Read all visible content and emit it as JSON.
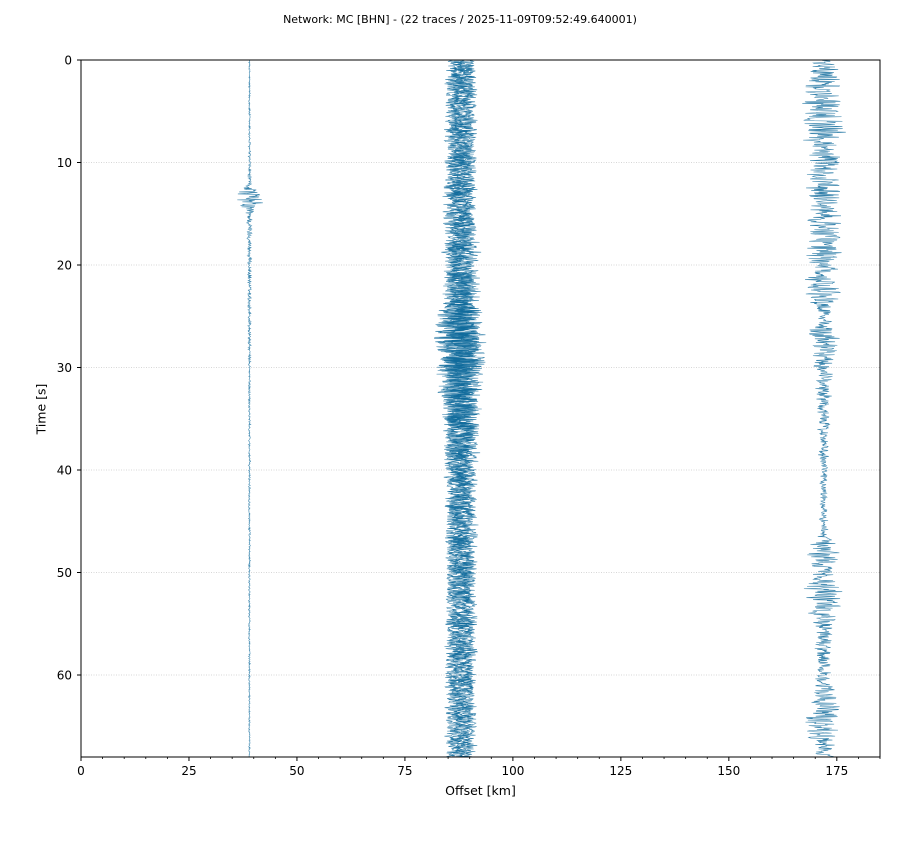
{
  "chart_data": {
    "type": "line",
    "title": "Network: MC [BHN] - (22 traces / 2025-11-09T09:52:49.640001)",
    "xlabel": "Offset [km]",
    "ylabel": "Time [s]",
    "xlim": [
      0,
      185
    ],
    "ylim": [
      68,
      0
    ],
    "y_inverted": true,
    "xticks": [
      0,
      25,
      50,
      75,
      100,
      125,
      150,
      175
    ],
    "yticks": [
      0,
      10,
      20,
      30,
      40,
      50,
      60
    ],
    "grid": true,
    "color": "#1f77b4",
    "trace_color": "#0e6a9b",
    "traces": [
      {
        "offset": 39,
        "amp_envelope": [
          [
            0,
            0.2
          ],
          [
            8,
            0.3
          ],
          [
            12,
            0.5
          ],
          [
            13.5,
            4.5
          ],
          [
            15,
            1.0
          ],
          [
            18,
            0.6
          ],
          [
            25,
            0.5
          ],
          [
            30,
            0.3
          ],
          [
            68,
            0.2
          ]
        ]
      },
      {
        "offset": 86,
        "amp_envelope": [
          [
            0,
            2.0
          ],
          [
            10,
            2.2
          ],
          [
            16,
            3.0
          ],
          [
            22,
            2.2
          ],
          [
            27,
            5.5
          ],
          [
            30,
            4.5
          ],
          [
            35,
            3.0
          ],
          [
            45,
            2.0
          ],
          [
            55,
            2.0
          ],
          [
            68,
            2.0
          ]
        ]
      },
      {
        "offset": 87,
        "amp_envelope": [
          [
            0,
            2.0
          ],
          [
            10,
            2.3
          ],
          [
            20,
            2.5
          ],
          [
            27,
            6.0
          ],
          [
            31,
            5.0
          ],
          [
            36,
            3.2
          ],
          [
            50,
            2.2
          ],
          [
            68,
            2.0
          ]
        ]
      },
      {
        "offset": 88,
        "amp_envelope": [
          [
            0,
            2.2
          ],
          [
            12,
            2.5
          ],
          [
            22,
            2.8
          ],
          [
            28,
            6.0
          ],
          [
            32,
            5.5
          ],
          [
            38,
            3.0
          ],
          [
            55,
            2.2
          ],
          [
            68,
            2.0
          ]
        ]
      },
      {
        "offset": 89,
        "amp_envelope": [
          [
            0,
            2.2
          ],
          [
            12,
            2.5
          ],
          [
            22,
            2.6
          ],
          [
            28,
            5.0
          ],
          [
            33,
            4.5
          ],
          [
            40,
            2.6
          ],
          [
            68,
            2.0
          ]
        ]
      },
      {
        "offset": 90,
        "amp_envelope": [
          [
            0,
            1.8
          ],
          [
            15,
            2.0
          ],
          [
            27,
            4.5
          ],
          [
            32,
            4.0
          ],
          [
            40,
            2.2
          ],
          [
            68,
            1.8
          ]
        ]
      },
      {
        "offset": 172,
        "amp_envelope": [
          [
            0,
            3.5
          ],
          [
            2,
            4.5
          ],
          [
            7,
            6.0
          ],
          [
            9,
            4.0
          ],
          [
            13,
            4.5
          ],
          [
            15,
            4.5
          ],
          [
            18,
            5.0
          ],
          [
            21,
            4.5
          ],
          [
            23,
            5.5
          ],
          [
            25,
            1.5
          ],
          [
            27,
            5.0
          ],
          [
            30,
            2.5
          ],
          [
            33,
            2.0
          ],
          [
            37,
            1.5
          ],
          [
            42,
            1.0
          ],
          [
            46,
            1.2
          ],
          [
            48,
            4.5
          ],
          [
            50,
            3.0
          ],
          [
            52,
            5.5
          ],
          [
            55,
            3.0
          ],
          [
            60,
            2.0
          ],
          [
            63,
            4.5
          ],
          [
            65,
            5.0
          ],
          [
            68,
            2.5
          ]
        ]
      }
    ]
  }
}
